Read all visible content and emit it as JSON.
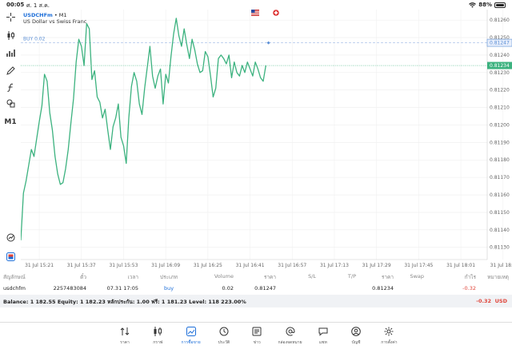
{
  "status_bar": {
    "time": "00:05",
    "date": "ศ. 1 ส.ค.",
    "battery": "88%",
    "battery_level": 0.88
  },
  "chart": {
    "symbol": "USDCHFm",
    "timeframe_suffix": "• M1",
    "description": "US Dollar vs Swiss Franc",
    "buy_label": "BUY 0.02",
    "timeframe_button": "M1",
    "colors": {
      "line": "#3cb27f",
      "buy_line": "#9ab8e3",
      "bid_line": "#3cb27f",
      "buy_tag": "#5b8fd6",
      "bid_tag": "#3cb27f"
    }
  },
  "chart_data": {
    "type": "line",
    "series": [
      {
        "name": "USDCHFm",
        "x_start": "31 Jul 15:14",
        "interval_minutes": 1,
        "values": [
          0.81134,
          0.81161,
          0.81168,
          0.81177,
          0.81186,
          0.81182,
          0.81192,
          0.81202,
          0.81211,
          0.81229,
          0.81225,
          0.81207,
          0.81197,
          0.81182,
          0.81172,
          0.81166,
          0.81167,
          0.81175,
          0.81186,
          0.81201,
          0.81215,
          0.81236,
          0.81249,
          0.81245,
          0.81234,
          0.81258,
          0.81255,
          0.81226,
          0.81231,
          0.81216,
          0.81213,
          0.81204,
          0.81209,
          0.81197,
          0.81186,
          0.81199,
          0.81204,
          0.81212,
          0.81193,
          0.81188,
          0.81178,
          0.81204,
          0.81222,
          0.8123,
          0.81225,
          0.81212,
          0.81206,
          0.81221,
          0.81233,
          0.81245,
          0.81228,
          0.81221,
          0.81228,
          0.81232,
          0.81212,
          0.81229,
          0.81224,
          0.81239,
          0.81252,
          0.81261,
          0.81251,
          0.81245,
          0.81255,
          0.81246,
          0.81238,
          0.81249,
          0.81243,
          0.81235,
          0.8123,
          0.81231,
          0.81242,
          0.81239,
          0.81228,
          0.81216,
          0.81221,
          0.81238,
          0.8124,
          0.81238,
          0.81235,
          0.8124,
          0.81227,
          0.81236,
          0.8123,
          0.81228,
          0.81234,
          0.8123,
          0.81236,
          0.81232,
          0.81228,
          0.81236,
          0.81232,
          0.81227,
          0.81225,
          0.81234
        ]
      }
    ],
    "x_ticks": [
      "31 Jul 15:21",
      "31 Jul 15:37",
      "31 Jul 15:53",
      "31 Jul 16:09",
      "31 Jul 16:25",
      "31 Jul 16:41",
      "31 Jul 16:57",
      "31 Jul 17:13",
      "31 Jul 17:29",
      "31 Jul 17:45",
      "31 Jul 18:01",
      "31 Jul 18:1"
    ],
    "y_ticks": [
      "0.81260",
      "0.81250",
      "0.81240",
      "0.81230",
      "0.81220",
      "0.81210",
      "0.81200",
      "0.81190",
      "0.81180",
      "0.81170",
      "0.81160",
      "0.81150",
      "0.81140",
      "0.81130"
    ],
    "ylim": [
      0.81123,
      0.81266
    ],
    "xlim": [
      "31 Jul 15:14",
      "31 Jul 18:11"
    ],
    "buy_price": 0.81247,
    "buy_tag": "0.81247",
    "bid_price": 0.81234,
    "bid_tag": "0.81234",
    "grid": true
  },
  "table": {
    "headers": [
      "สัญลักษณ์",
      "ตั๋ว",
      "เวลา",
      "ประเภท",
      "Volume",
      "ราคา",
      "S/L",
      "T/P",
      "ราคา",
      "Swap",
      "กำไร",
      "หมายเหตุ"
    ],
    "row": [
      "usdchfm",
      "2257483084",
      "07.31 17:05",
      "buy",
      "0.02",
      "0.81247",
      "",
      "",
      "0.81234",
      "",
      "-0.32",
      ""
    ]
  },
  "balance": {
    "text": "Balance: 1 182.55 Equity: 1 182.23 หลักประกัน: 1.00 ฟรี: 1 181.23 Level: 118 223.00%",
    "pl": "-0.32",
    "currency": "USD"
  },
  "nav": [
    {
      "label": "ราคา",
      "icon": "quotes-arrows-icon"
    },
    {
      "label": "กราฟ",
      "icon": "candlestick-icon"
    },
    {
      "label": "การซื้อขาย",
      "icon": "trade-chart-icon",
      "active": true
    },
    {
      "label": "ประวัติ",
      "icon": "history-clock-icon"
    },
    {
      "label": "ข่าว",
      "icon": "news-icon"
    },
    {
      "label": "กล่องจดหมาย",
      "icon": "mailbox-at-icon"
    },
    {
      "label": "แชท",
      "icon": "chat-bubble-icon"
    },
    {
      "label": "บัญชี",
      "icon": "account-user-icon"
    },
    {
      "label": "การตั้งค่า",
      "icon": "settings-gear-icon"
    }
  ]
}
